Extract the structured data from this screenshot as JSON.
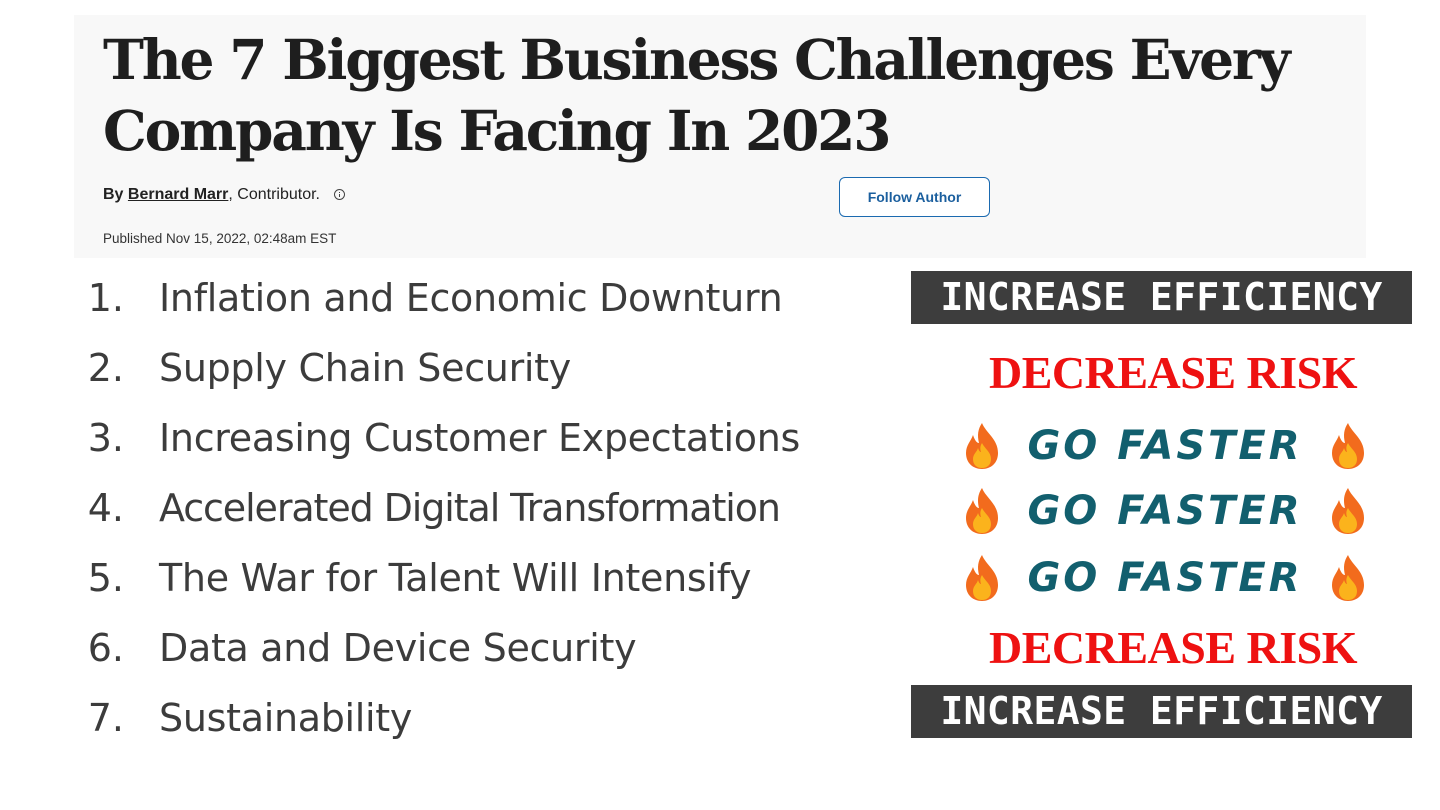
{
  "article": {
    "headline": "The 7 Biggest Business Challenges Every Company Is Facing In 2023",
    "byline_prefix": "By",
    "author": "Bernard Marr",
    "byline_suffix": ",  Contributor.",
    "follow_label": "Follow Author",
    "published": "Published Nov 15, 2022, 02:48am EST"
  },
  "challenges": [
    {
      "num": "1.",
      "text": "Inflation and Economic Downturn",
      "tag": "INCREASE EFFICIENCY",
      "tag_style": "efficiency"
    },
    {
      "num": "2.",
      "text": "Supply Chain Security",
      "tag": "DECREASE RISK",
      "tag_style": "risk"
    },
    {
      "num": "3.",
      "text": "Increasing Customer Expectations",
      "tag": "GO FASTER",
      "tag_style": "faster"
    },
    {
      "num": "4.",
      "text": "Accelerated Digital Transformation",
      "tag": "GO FASTER",
      "tag_style": "faster"
    },
    {
      "num": "5.",
      "text": "The War for Talent Will Intensify",
      "tag": "GO FASTER",
      "tag_style": "faster"
    },
    {
      "num": "6.",
      "text": "Data and Device Security",
      "tag": "DECREASE RISK",
      "tag_style": "risk"
    },
    {
      "num": "7.",
      "text": "Sustainability",
      "tag": "INCREASE EFFICIENCY",
      "tag_style": "efficiency"
    }
  ],
  "icons": {
    "faster_decoration": "fire-icon",
    "author_info": "info-icon"
  },
  "colors": {
    "efficiency_bg": "#3d3d3d",
    "risk_text": "#ee1111",
    "faster_text": "#125f6e",
    "follow_border": "#1b6ab0"
  }
}
